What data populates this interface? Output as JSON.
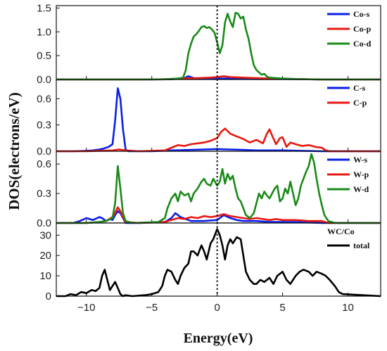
{
  "chart_data": {
    "type": "line",
    "xlabel": "Energy(eV)",
    "ylabel": "DOS(electrons/eV)",
    "xlim": [
      -12.3,
      12.5
    ],
    "xticks": [
      -10,
      -5,
      0,
      5,
      10
    ],
    "xtick_labels": [
      "−10",
      "−5",
      "0",
      "5",
      "10"
    ],
    "fermi_level_line": 0,
    "panels": [
      {
        "ylim": [
          0,
          1.55
        ],
        "yticks": [
          0.0,
          0.5,
          1.0,
          1.5
        ],
        "ytick_labels": [
          "0.0",
          "0.5",
          "1.0",
          "1.5"
        ],
        "legend": {
          "placement": "top-right"
        },
        "series": [
          {
            "name": "Co-s",
            "color": "#0a1ee8",
            "x": [
              -12.3,
              -5,
              -3.5,
              -2.5,
              -2.2,
              -1.8,
              -1.0,
              0,
              1,
              2,
              3,
              5,
              8,
              12.5
            ],
            "y": [
              0,
              0,
              0.005,
              0.03,
              0.07,
              0.03,
              0.02,
              0.02,
              0.02,
              0.02,
              0.01,
              0.01,
              0,
              0
            ]
          },
          {
            "name": "Co-p",
            "color": "#e8180f",
            "x": [
              -12.3,
              -5,
              -3.5,
              -2.5,
              -1.5,
              -0.5,
              0,
              0.5,
              1,
              2,
              3,
              4,
              6,
              8,
              12.5
            ],
            "y": [
              0,
              0,
              0.01,
              0.02,
              0.03,
              0.04,
              0.05,
              0.07,
              0.05,
              0.04,
              0.03,
              0.02,
              0.01,
              0,
              0
            ]
          },
          {
            "name": "Co-d",
            "color": "#1a8a18",
            "x": [
              -12.3,
              -6,
              -4,
              -3,
              -2.6,
              -2.4,
              -2.2,
              -2.0,
              -1.8,
              -1.6,
              -1.4,
              -1.2,
              -1.0,
              -0.8,
              -0.6,
              -0.4,
              -0.2,
              0.0,
              0.2,
              0.4,
              0.6,
              0.8,
              1.0,
              1.2,
              1.4,
              1.6,
              1.8,
              2.0,
              2.2,
              2.4,
              2.6,
              2.8,
              3.0,
              3.2,
              3.4,
              3.6,
              3.8,
              4.0,
              4.5,
              5.0,
              6.0,
              8.0,
              12.5
            ],
            "y": [
              0,
              0,
              0.005,
              0.02,
              0.04,
              0.2,
              0.55,
              0.75,
              0.9,
              0.95,
              1.02,
              1.1,
              1.12,
              1.08,
              1.1,
              1.05,
              0.98,
              0.78,
              0.55,
              0.72,
              1.2,
              1.38,
              1.22,
              1.1,
              1.4,
              1.38,
              1.28,
              1.32,
              1.05,
              0.85,
              0.55,
              0.3,
              0.2,
              0.15,
              0.1,
              0.12,
              0.06,
              0.04,
              0.03,
              0.02,
              0.01,
              0,
              0
            ]
          }
        ]
      },
      {
        "ylim": [
          0,
          0.82
        ],
        "yticks": [
          0.0,
          0.3,
          0.6
        ],
        "ytick_labels": [
          "0.0",
          "0.3",
          "0.6"
        ],
        "legend": {
          "placement": "top-right"
        },
        "series": [
          {
            "name": "C-s",
            "color": "#0a1ee8",
            "x": [
              -12.3,
              -11,
              -10,
              -9.5,
              -9,
              -8.7,
              -8.3,
              -8.0,
              -7.8,
              -7.6,
              -7.4,
              -7.2,
              -7.0,
              -6.8,
              -5,
              -3.5,
              -2,
              -1,
              0,
              1,
              2,
              3,
              5,
              8,
              12.5
            ],
            "y": [
              0,
              0,
              0.005,
              0.01,
              0.02,
              0.03,
              0.05,
              0.08,
              0.35,
              0.72,
              0.6,
              0.25,
              0.02,
              0,
              0,
              0.01,
              0.015,
              0.02,
              0.025,
              0.02,
              0.015,
              0.01,
              0.01,
              0,
              0
            ]
          },
          {
            "name": "C-p",
            "color": "#e8180f",
            "x": [
              -12.3,
              -10,
              -9,
              -8,
              -7.5,
              -7,
              -6,
              -4,
              -3.5,
              -3,
              -2.5,
              -2,
              -1.5,
              -1,
              -0.5,
              0,
              0.3,
              0.6,
              1.0,
              1.5,
              2,
              2.5,
              3,
              3.5,
              3.8,
              4.0,
              4.2,
              4.5,
              4.8,
              5.0,
              5.3,
              5.6,
              6,
              6.5,
              7,
              7.5,
              8,
              8.3,
              8.6,
              12.5
            ],
            "y": [
              0,
              0,
              0.005,
              0.01,
              0.02,
              0.01,
              0,
              0.01,
              0.04,
              0.07,
              0.06,
              0.08,
              0.09,
              0.1,
              0.12,
              0.15,
              0.22,
              0.26,
              0.2,
              0.17,
              0.14,
              0.1,
              0.13,
              0.09,
              0.2,
              0.25,
              0.18,
              0.08,
              0.15,
              0.16,
              0.05,
              0.1,
              0.08,
              0.06,
              0.07,
              0.05,
              0.04,
              0.01,
              0,
              0
            ]
          }
        ]
      },
      {
        "ylim": [
          0,
          0.73
        ],
        "yticks": [
          0.0,
          0.3,
          0.6
        ],
        "ytick_labels": [
          "0.0",
          "0.3",
          "0.6"
        ],
        "legend": {
          "placement": "top-right"
        },
        "series": [
          {
            "name": "W-s",
            "color": "#0a1ee8",
            "x": [
              -12.3,
              -11,
              -10.5,
              -10,
              -9.5,
              -9,
              -8.8,
              -8.5,
              -8.2,
              -8.0,
              -7.8,
              -7.6,
              -7.4,
              -7.2,
              -7.0,
              -6,
              -4,
              -3.5,
              -3.2,
              -2.8,
              -2.4,
              -2,
              -1,
              0,
              0.5,
              1,
              1.5,
              2,
              3,
              4,
              5,
              6,
              8,
              12.5
            ],
            "y": [
              0,
              0,
              0.02,
              0.05,
              0.03,
              0.06,
              0.05,
              0.02,
              0.04,
              0.03,
              0.08,
              0.12,
              0.1,
              0.05,
              0,
              0,
              0.01,
              0.05,
              0.1,
              0.06,
              0.04,
              0.02,
              0.02,
              0.03,
              0.08,
              0.05,
              0.03,
              0.02,
              0.02,
              0.01,
              0.01,
              0.01,
              0,
              0
            ]
          },
          {
            "name": "W-p",
            "color": "#e8180f",
            "x": [
              -12.3,
              -10,
              -9,
              -8.5,
              -8,
              -7.8,
              -7.6,
              -7.4,
              -7.2,
              -7.0,
              -6,
              -4,
              -3.5,
              -3,
              -2.5,
              -2,
              -1.5,
              -1,
              -0.5,
              0,
              0.5,
              1,
              1.5,
              2,
              2.5,
              3,
              3.5,
              4,
              4.5,
              5,
              6,
              7,
              8,
              8.5,
              12.5
            ],
            "y": [
              0,
              0,
              0.01,
              0.02,
              0.06,
              0.1,
              0.16,
              0.12,
              0.06,
              0.01,
              0,
              0.01,
              0.03,
              0.05,
              0.04,
              0.06,
              0.05,
              0.07,
              0.06,
              0.07,
              0.09,
              0.07,
              0.06,
              0.05,
              0.04,
              0.05,
              0.04,
              0.03,
              0.04,
              0.03,
              0.03,
              0.02,
              0.02,
              0,
              0
            ]
          },
          {
            "name": "W-d",
            "color": "#1a8a18",
            "x": [
              -12.3,
              -10,
              -9,
              -8.5,
              -8.0,
              -7.8,
              -7.6,
              -7.4,
              -7.2,
              -7.0,
              -6.5,
              -4.5,
              -4.0,
              -3.8,
              -3.5,
              -3.2,
              -3.0,
              -2.8,
              -2.5,
              -2.2,
              -2.0,
              -1.8,
              -1.5,
              -1.2,
              -1.0,
              -0.8,
              -0.5,
              -0.3,
              0.0,
              0.2,
              0.4,
              0.6,
              0.8,
              1.0,
              1.2,
              1.4,
              1.6,
              1.8,
              2.0,
              2.2,
              2.5,
              2.8,
              3.0,
              3.2,
              3.4,
              3.6,
              3.8,
              4.0,
              4.2,
              4.4,
              4.6,
              4.8,
              5.0,
              5.2,
              5.4,
              5.6,
              5.8,
              6.0,
              6.2,
              6.4,
              6.6,
              6.8,
              7.0,
              7.2,
              7.4,
              7.6,
              7.8,
              8.0,
              8.2,
              8.5,
              9.0,
              12.5
            ],
            "y": [
              0,
              0,
              0.01,
              0.02,
              0.05,
              0.2,
              0.58,
              0.35,
              0.1,
              0.02,
              0,
              0.01,
              0.05,
              0.15,
              0.25,
              0.3,
              0.22,
              0.32,
              0.28,
              0.3,
              0.22,
              0.3,
              0.35,
              0.42,
              0.45,
              0.4,
              0.38,
              0.45,
              0.38,
              0.42,
              0.55,
              0.4,
              0.5,
              0.44,
              0.48,
              0.35,
              0.25,
              0.22,
              0.15,
              0.08,
              0.05,
              0.1,
              0.2,
              0.3,
              0.25,
              0.32,
              0.28,
              0.25,
              0.3,
              0.35,
              0.38,
              0.22,
              0.25,
              0.35,
              0.3,
              0.42,
              0.3,
              0.18,
              0.25,
              0.38,
              0.45,
              0.52,
              0.58,
              0.7,
              0.62,
              0.45,
              0.3,
              0.18,
              0.08,
              0.02,
              0,
              0
            ]
          }
        ]
      },
      {
        "ylim": [
          0,
          36
        ],
        "yticks": [
          0,
          10,
          20,
          30
        ],
        "ytick_labels": [
          "0",
          "10",
          "20",
          "30"
        ],
        "legend": {
          "title": "WC/Co",
          "placement": "top-right"
        },
        "series": [
          {
            "name": "total",
            "color": "#000000",
            "x": [
              -12.3,
              -11.6,
              -11.2,
              -10.8,
              -10.4,
              -10.0,
              -9.6,
              -9.3,
              -9.0,
              -8.8,
              -8.6,
              -8.4,
              -8.2,
              -8.0,
              -7.8,
              -7.6,
              -7.4,
              -7.2,
              -7.0,
              -6.5,
              -5.5,
              -5.0,
              -4.5,
              -4.2,
              -4.0,
              -3.8,
              -3.5,
              -3.2,
              -3.0,
              -2.8,
              -2.5,
              -2.2,
              -2.0,
              -1.8,
              -1.5,
              -1.2,
              -1.0,
              -0.8,
              -0.5,
              -0.3,
              0.0,
              0.2,
              0.4,
              0.6,
              0.8,
              1.0,
              1.2,
              1.5,
              1.8,
              2.0,
              2.2,
              2.5,
              2.8,
              3.0,
              3.3,
              3.6,
              4.0,
              4.3,
              4.6,
              5.0,
              5.3,
              5.6,
              6.0,
              6.3,
              6.6,
              7.0,
              7.3,
              7.6,
              8.0,
              8.3,
              8.6,
              9.0,
              9.3,
              9.6,
              12.5
            ],
            "y": [
              0,
              0,
              1,
              0.5,
              2,
              1.5,
              3,
              2.5,
              4,
              10,
              13,
              8,
              3,
              5,
              7,
              4,
              1,
              0,
              0.5,
              0,
              0.5,
              1,
              2,
              5,
              10,
              13,
              12,
              8,
              6,
              10,
              14,
              16,
              22,
              22,
              20,
              25,
              22,
              18,
              26,
              28,
              33,
              30,
              25,
              18,
              25,
              28,
              26,
              29,
              28,
              20,
              12,
              8,
              6,
              6,
              8,
              7,
              9,
              6,
              10,
              12,
              8,
              6,
              10,
              12,
              13,
              12,
              10,
              12,
              11,
              10,
              8,
              5,
              2,
              1,
              0
            ]
          }
        ]
      }
    ]
  }
}
